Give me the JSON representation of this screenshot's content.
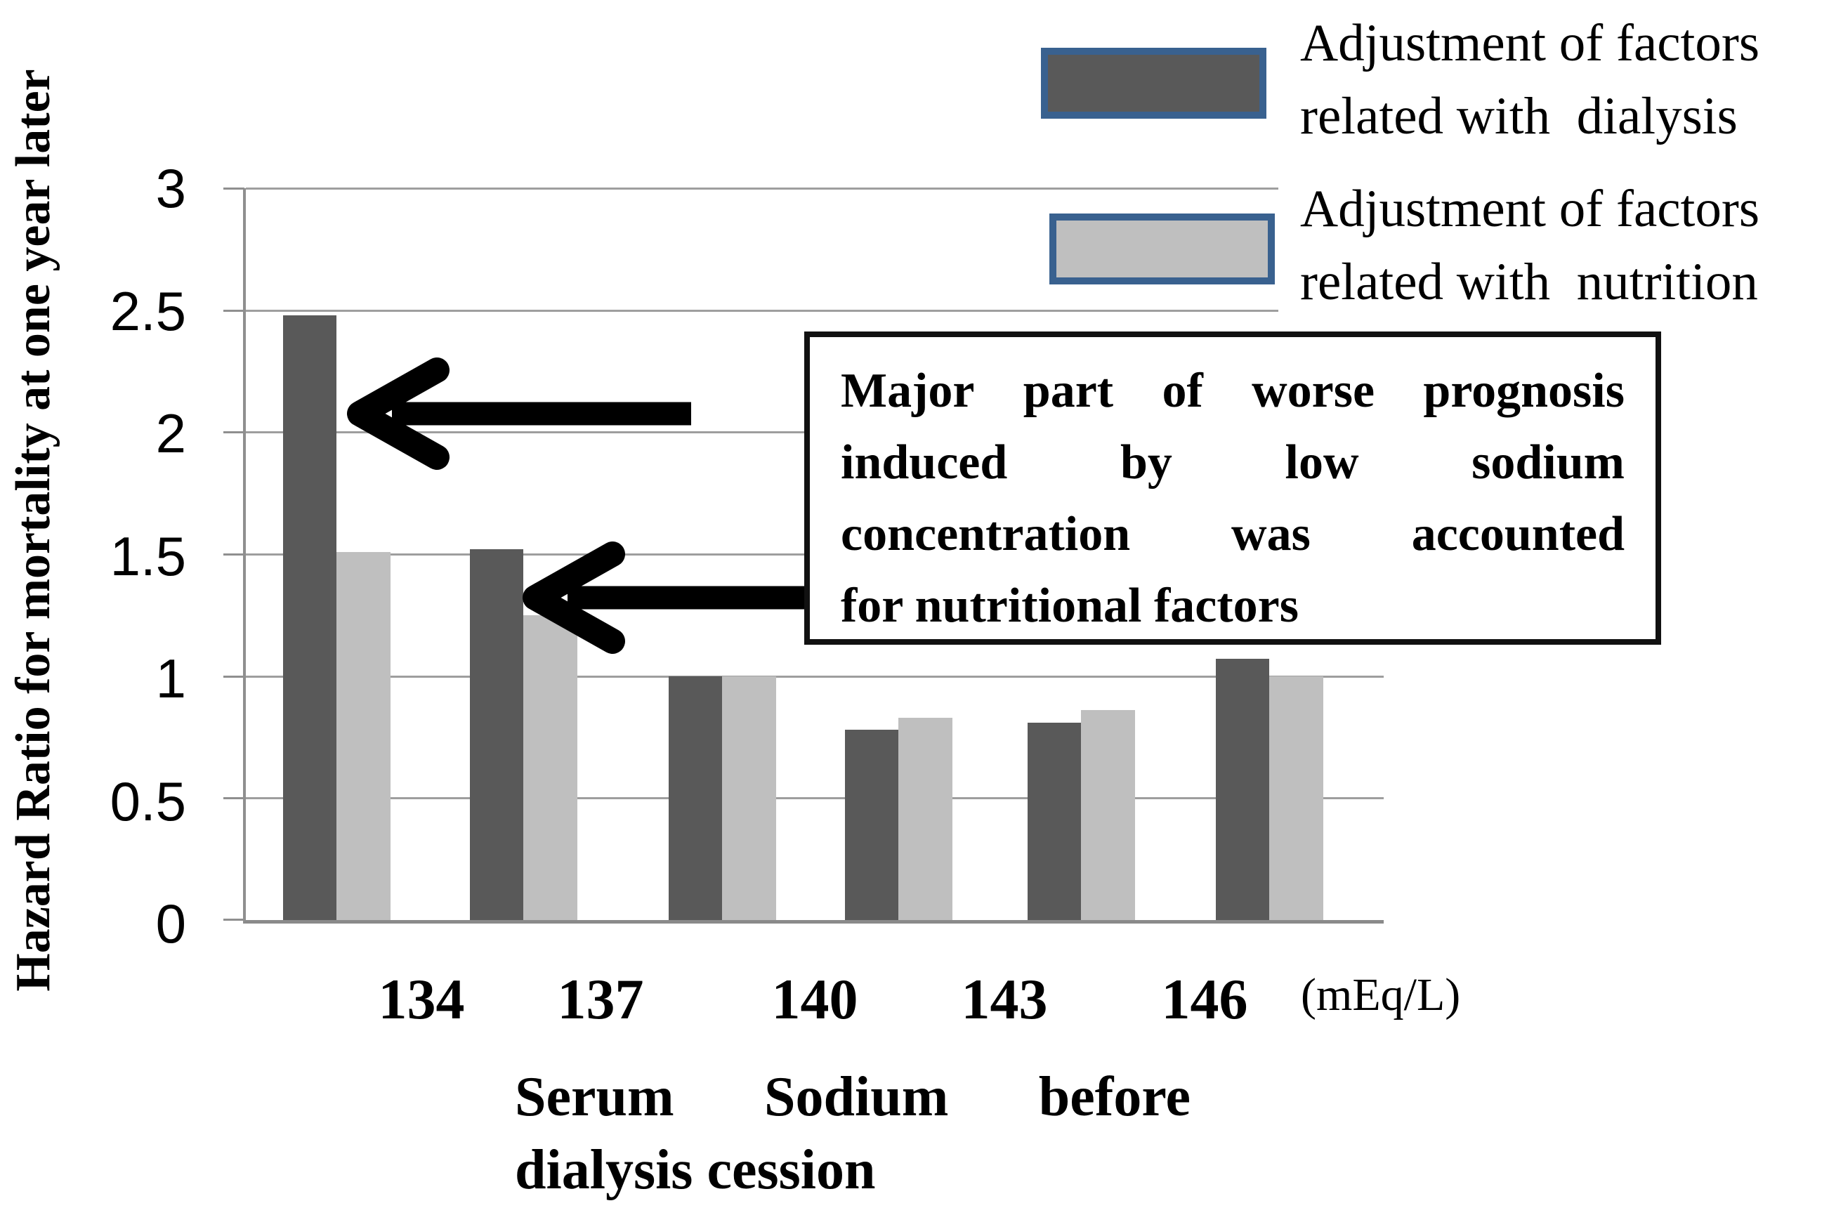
{
  "chart_data": {
    "type": "bar",
    "title": "",
    "ylabel": "Hazard Ratio for mortality at one year later",
    "xlabel_lines": [
      "Serum Sodium before",
      "dialysis cession"
    ],
    "x_unit_label": "(mEq/L)",
    "x_boundary_labels": [
      "134",
      "137",
      "140",
      "143",
      "146"
    ],
    "y_tick_labels": [
      "3",
      "2.5",
      "2",
      "1.5",
      "1",
      "0.5",
      "0"
    ],
    "ylim": [
      0,
      3
    ],
    "grid": true,
    "legend_position": "top-right",
    "n_groups": 6,
    "series": [
      {
        "name": "Adjustment of factors related with dialysis",
        "color": "#595959",
        "values": [
          2.48,
          1.52,
          1.0,
          0.78,
          0.81,
          1.07
        ]
      },
      {
        "name": "Adjustment of factors related with nutrition",
        "color": "#bfbfbf",
        "values": [
          1.51,
          1.25,
          1.0,
          0.83,
          0.86,
          1.0
        ]
      }
    ]
  },
  "legend": {
    "swatch_border_color": "#39618f",
    "items": [
      {
        "line1": "Adjustment of factors",
        "line2": "related with  dialysis",
        "color": "#595959"
      },
      {
        "line1": "Adjustment of factors",
        "line2": "related with  nutrition",
        "color": "#bfbfbf"
      }
    ]
  },
  "annotation": {
    "lines": [
      "Major part of worse prognosis",
      "induced by low sodium",
      "concentration was accounted",
      "for nutritional factors"
    ]
  },
  "colors": {
    "dark_series": "#595959",
    "light_series": "#bfbfbf",
    "gridline": "#9e9e9e",
    "axis": "#8f8f8f",
    "arrow": "#000000",
    "annotation_border": "#111111"
  }
}
